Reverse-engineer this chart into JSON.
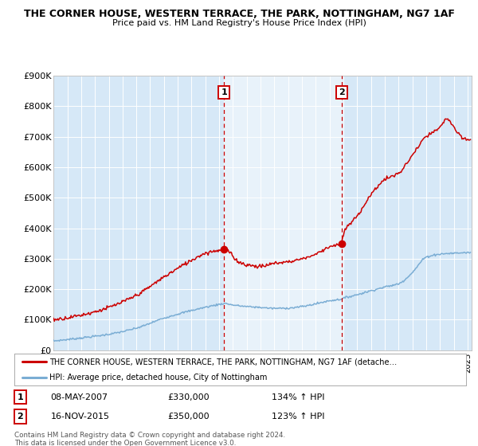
{
  "title_line1": "THE CORNER HOUSE, WESTERN TERRACE, THE PARK, NOTTINGHAM, NG7 1AF",
  "title_line2": "Price paid vs. HM Land Registry's House Price Index (HPI)",
  "background_color": "#ffffff",
  "plot_bg_color": "#d6e8f7",
  "ylim": [
    0,
    900000
  ],
  "yticks": [
    0,
    100000,
    200000,
    300000,
    400000,
    500000,
    600000,
    700000,
    800000,
    900000
  ],
  "ytick_labels": [
    "£0",
    "£100K",
    "£200K",
    "£300K",
    "£400K",
    "£500K",
    "£600K",
    "£700K",
    "£800K",
    "£900K"
  ],
  "red_line_color": "#cc0000",
  "blue_line_color": "#7aadd4",
  "marker1_year": 2007.36,
  "marker1_value": 330000,
  "marker1_label": "1",
  "marker1_date": "08-MAY-2007",
  "marker1_price": "£330,000",
  "marker1_hpi": "134% ↑ HPI",
  "marker2_year": 2015.88,
  "marker2_value": 350000,
  "marker2_label": "2",
  "marker2_date": "16-NOV-2015",
  "marker2_price": "£350,000",
  "marker2_hpi": "123% ↑ HPI",
  "legend_red_label": "THE CORNER HOUSE, WESTERN TERRACE, THE PARK, NOTTINGHAM, NG7 1AF (detache…",
  "legend_blue_label": "HPI: Average price, detached house, City of Nottingham",
  "footer": "Contains HM Land Registry data © Crown copyright and database right 2024.\nThis data is licensed under the Open Government Licence v3.0.",
  "xmin": 1995,
  "xmax": 2025.3
}
